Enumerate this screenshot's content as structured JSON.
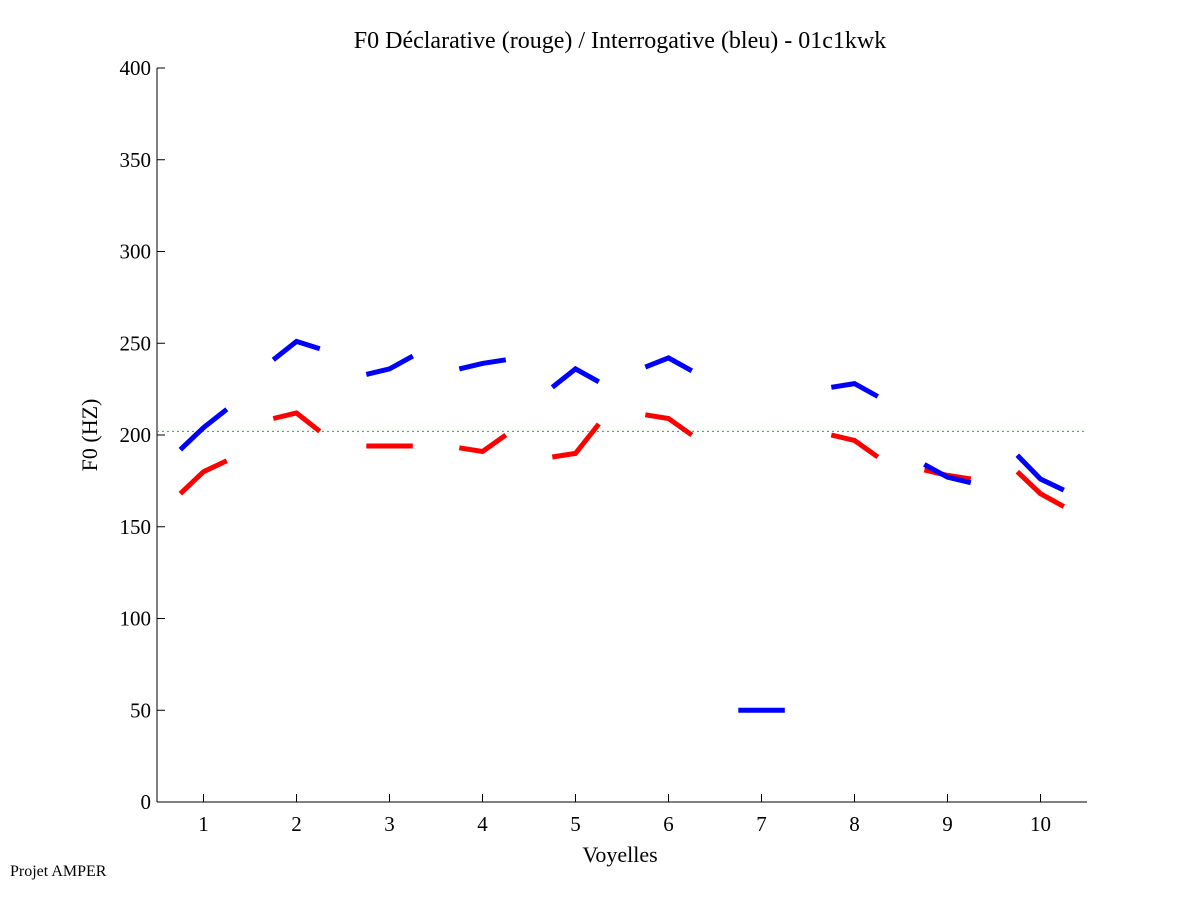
{
  "chart_data": {
    "type": "line",
    "title": "F0 Déclarative (rouge) / Interrogative (bleu) - 01c1kwk",
    "xlabel": "Voyelles",
    "ylabel": "F0 (HZ)",
    "xlim": [
      0.5,
      10.5
    ],
    "ylim": [
      0,
      400
    ],
    "xticks": [
      "1",
      "2",
      "3",
      "4",
      "5",
      "6",
      "7",
      "8",
      "9",
      "10"
    ],
    "yticks": [
      "0",
      "50",
      "100",
      "150",
      "200",
      "250",
      "300",
      "350",
      "400"
    ],
    "reference_line": {
      "y": 202,
      "color": "#00cc00",
      "style": "dotted"
    },
    "series": [
      {
        "color": "#ff0000",
        "segments": [
          {
            "vowel": 1,
            "x": [
              0.75,
              1.0,
              1.25
            ],
            "y": [
              168,
              180,
              186
            ]
          },
          {
            "vowel": 2,
            "x": [
              1.75,
              2.0,
              2.25
            ],
            "y": [
              209,
              212,
              202
            ]
          },
          {
            "vowel": 3,
            "x": [
              2.75,
              3.0,
              3.25
            ],
            "y": [
              194,
              194,
              194
            ]
          },
          {
            "vowel": 4,
            "x": [
              3.75,
              4.0,
              4.25
            ],
            "y": [
              193,
              191,
              200
            ]
          },
          {
            "vowel": 5,
            "x": [
              4.75,
              5.0,
              5.25
            ],
            "y": [
              188,
              190,
              206
            ]
          },
          {
            "vowel": 6,
            "x": [
              5.75,
              6.0,
              6.25
            ],
            "y": [
              211,
              209,
              200
            ]
          },
          {
            "vowel": 8,
            "x": [
              7.75,
              8.0,
              8.25
            ],
            "y": [
              200,
              197,
              188
            ]
          },
          {
            "vowel": 9,
            "x": [
              8.75,
              9.0,
              9.25
            ],
            "y": [
              181,
              178,
              176
            ]
          },
          {
            "vowel": 10,
            "x": [
              9.75,
              10.0,
              10.25
            ],
            "y": [
              180,
              168,
              161
            ]
          }
        ]
      },
      {
        "color": "#0000ff",
        "segments": [
          {
            "vowel": 1,
            "x": [
              0.75,
              1.0,
              1.25
            ],
            "y": [
              192,
              204,
              214
            ]
          },
          {
            "vowel": 2,
            "x": [
              1.75,
              2.0,
              2.25
            ],
            "y": [
              241,
              251,
              247
            ]
          },
          {
            "vowel": 3,
            "x": [
              2.75,
              3.0,
              3.25
            ],
            "y": [
              233,
              236,
              243
            ]
          },
          {
            "vowel": 4,
            "x": [
              3.75,
              4.0,
              4.25
            ],
            "y": [
              236,
              239,
              241
            ]
          },
          {
            "vowel": 5,
            "x": [
              4.75,
              5.0,
              5.25
            ],
            "y": [
              226,
              236,
              229
            ]
          },
          {
            "vowel": 6,
            "x": [
              5.75,
              6.0,
              6.25
            ],
            "y": [
              237,
              242,
              235
            ]
          },
          {
            "vowel": 7,
            "x": [
              6.75,
              7.0,
              7.25
            ],
            "y": [
              50,
              50,
              50
            ]
          },
          {
            "vowel": 8,
            "x": [
              7.75,
              8.0,
              8.25
            ],
            "y": [
              226,
              228,
              221
            ]
          },
          {
            "vowel": 9,
            "x": [
              8.75,
              9.0,
              9.25
            ],
            "y": [
              184,
              177,
              174
            ]
          },
          {
            "vowel": 10,
            "x": [
              9.75,
              10.0,
              10.25
            ],
            "y": [
              189,
              176,
              170
            ]
          }
        ]
      }
    ]
  },
  "footer": {
    "label": "Projet AMPER"
  }
}
